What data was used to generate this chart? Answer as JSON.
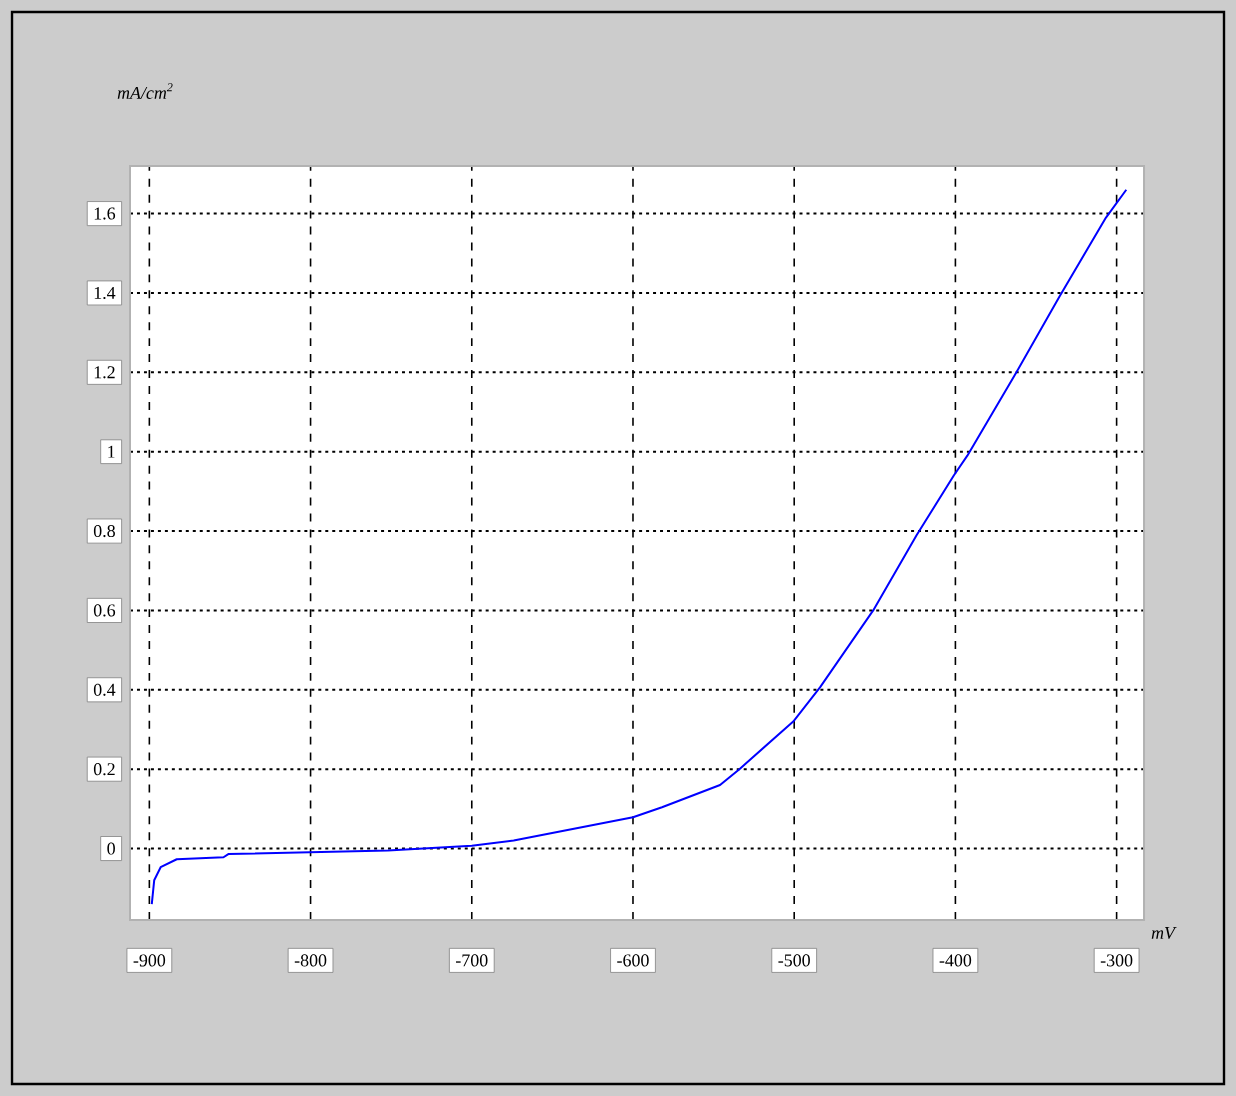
{
  "chart_data": {
    "type": "line",
    "xlabel": "mV",
    "ylabel": "mA/cm$^{2}$",
    "x": [
      -898.5,
      -897,
      -893,
      -883,
      -854,
      -851,
      -752,
      -700,
      -674,
      -600,
      -582,
      -546,
      -534,
      -500.6,
      -484,
      -451,
      -424,
      -401,
      -392.6,
      -363.6,
      -335.6,
      -306.6,
      -294
    ],
    "series": [
      {
        "color": "#0000ff",
        "values": [
          -0.14,
          -0.08,
          -0.047,
          -0.027,
          -0.022,
          -0.014,
          -0.005,
          0.007,
          0.02,
          0.079,
          0.104,
          0.16,
          0.2,
          0.32,
          0.406,
          0.6,
          0.79,
          0.94,
          0.99,
          1.19,
          1.39,
          1.59,
          1.66
        ]
      }
    ],
    "xlim": [
      -912,
      -283
    ],
    "ylim": [
      -0.18,
      1.72
    ],
    "xticks": [
      -900,
      -800,
      -700,
      -600,
      -500,
      -400,
      -300
    ],
    "yticks": [
      0,
      0.2,
      0.4,
      0.6,
      0.8,
      1,
      1.2,
      1.4,
      1.6
    ],
    "grid": true
  }
}
